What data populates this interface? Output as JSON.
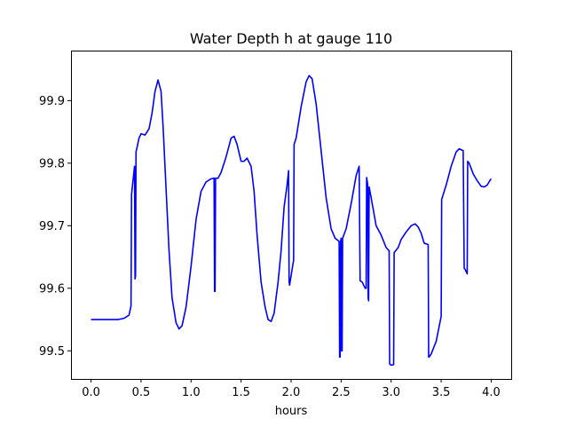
{
  "chart_data": {
    "type": "line",
    "title": "Water Depth h at gauge 110",
    "xlabel": "hours",
    "ylabel": "",
    "xlim": [
      -0.2,
      4.2
    ],
    "ylim": [
      99.455,
      99.98
    ],
    "grid": false,
    "x_ticks": [
      {
        "value": 0.0,
        "label": "0.0"
      },
      {
        "value": 0.5,
        "label": "0.5"
      },
      {
        "value": 1.0,
        "label": "1.0"
      },
      {
        "value": 1.5,
        "label": "1.5"
      },
      {
        "value": 2.0,
        "label": "2.0"
      },
      {
        "value": 2.5,
        "label": "2.5"
      },
      {
        "value": 3.0,
        "label": "3.0"
      },
      {
        "value": 3.5,
        "label": "3.5"
      },
      {
        "value": 4.0,
        "label": "4.0"
      }
    ],
    "y_ticks": [
      {
        "value": 99.5,
        "label": "99.5"
      },
      {
        "value": 99.6,
        "label": "99.6"
      },
      {
        "value": 99.7,
        "label": "99.7"
      },
      {
        "value": 99.8,
        "label": "99.8"
      },
      {
        "value": 99.9,
        "label": "99.9"
      }
    ],
    "series": [
      {
        "color": "#0000ff",
        "points": [
          [
            0.0,
            99.55
          ],
          [
            0.27,
            99.55
          ],
          [
            0.33,
            99.552
          ],
          [
            0.38,
            99.557
          ],
          [
            0.4,
            99.572
          ],
          [
            0.405,
            99.75
          ],
          [
            0.435,
            99.795
          ],
          [
            0.44,
            99.615
          ],
          [
            0.445,
            99.62
          ],
          [
            0.45,
            99.818
          ],
          [
            0.48,
            99.84
          ],
          [
            0.5,
            99.847
          ],
          [
            0.54,
            99.845
          ],
          [
            0.58,
            99.855
          ],
          [
            0.61,
            99.88
          ],
          [
            0.64,
            99.915
          ],
          [
            0.67,
            99.933
          ],
          [
            0.7,
            99.915
          ],
          [
            0.72,
            99.86
          ],
          [
            0.75,
            99.76
          ],
          [
            0.78,
            99.66
          ],
          [
            0.81,
            99.585
          ],
          [
            0.85,
            99.545
          ],
          [
            0.88,
            99.535
          ],
          [
            0.91,
            99.54
          ],
          [
            0.95,
            99.57
          ],
          [
            1.0,
            99.635
          ],
          [
            1.05,
            99.71
          ],
          [
            1.1,
            99.755
          ],
          [
            1.15,
            99.77
          ],
          [
            1.2,
            99.775
          ],
          [
            1.23,
            99.776
          ],
          [
            1.235,
            99.595
          ],
          [
            1.24,
            99.595
          ],
          [
            1.245,
            99.776
          ],
          [
            1.27,
            99.776
          ],
          [
            1.3,
            99.785
          ],
          [
            1.35,
            99.81
          ],
          [
            1.4,
            99.84
          ],
          [
            1.43,
            99.843
          ],
          [
            1.46,
            99.83
          ],
          [
            1.5,
            99.803
          ],
          [
            1.53,
            99.803
          ],
          [
            1.56,
            99.808
          ],
          [
            1.6,
            99.795
          ],
          [
            1.63,
            99.755
          ],
          [
            1.66,
            99.685
          ],
          [
            1.7,
            99.61
          ],
          [
            1.74,
            99.57
          ],
          [
            1.77,
            99.55
          ],
          [
            1.8,
            99.547
          ],
          [
            1.83,
            99.56
          ],
          [
            1.87,
            99.61
          ],
          [
            1.9,
            99.66
          ],
          [
            1.93,
            99.73
          ],
          [
            1.96,
            99.765
          ],
          [
            1.975,
            99.788
          ],
          [
            1.98,
            99.61
          ],
          [
            1.985,
            99.605
          ],
          [
            2.02,
            99.64
          ],
          [
            2.025,
            99.645
          ],
          [
            2.03,
            99.83
          ],
          [
            2.05,
            99.84
          ],
          [
            2.1,
            99.89
          ],
          [
            2.15,
            99.93
          ],
          [
            2.18,
            99.94
          ],
          [
            2.21,
            99.935
          ],
          [
            2.25,
            99.895
          ],
          [
            2.3,
            99.82
          ],
          [
            2.35,
            99.745
          ],
          [
            2.4,
            99.695
          ],
          [
            2.44,
            99.68
          ],
          [
            2.48,
            99.675
          ],
          [
            2.485,
            99.49
          ],
          [
            2.49,
            99.49
          ],
          [
            2.495,
            99.675
          ],
          [
            2.5,
            99.68
          ],
          [
            2.505,
            99.5
          ],
          [
            2.51,
            99.5
          ],
          [
            2.515,
            99.68
          ],
          [
            2.55,
            99.695
          ],
          [
            2.6,
            99.735
          ],
          [
            2.65,
            99.78
          ],
          [
            2.68,
            99.795
          ],
          [
            2.69,
            99.612
          ],
          [
            2.71,
            99.61
          ],
          [
            2.74,
            99.6
          ],
          [
            2.75,
            99.6
          ],
          [
            2.755,
            99.777
          ],
          [
            2.765,
            99.767
          ],
          [
            2.77,
            99.585
          ],
          [
            2.775,
            99.58
          ],
          [
            2.78,
            99.762
          ],
          [
            2.8,
            99.745
          ],
          [
            2.85,
            99.7
          ],
          [
            2.9,
            99.685
          ],
          [
            2.95,
            99.665
          ],
          [
            2.98,
            99.66
          ],
          [
            2.985,
            99.479
          ],
          [
            3.0,
            99.477
          ],
          [
            3.025,
            99.478
          ],
          [
            3.03,
            99.657
          ],
          [
            3.07,
            99.665
          ],
          [
            3.1,
            99.678
          ],
          [
            3.15,
            99.69
          ],
          [
            3.2,
            99.7
          ],
          [
            3.24,
            99.703
          ],
          [
            3.27,
            99.698
          ],
          [
            3.3,
            99.688
          ],
          [
            3.33,
            99.672
          ],
          [
            3.37,
            99.67
          ],
          [
            3.375,
            99.49
          ],
          [
            3.38,
            99.49
          ],
          [
            3.4,
            99.495
          ],
          [
            3.45,
            99.515
          ],
          [
            3.5,
            99.555
          ],
          [
            3.505,
            99.742
          ],
          [
            3.55,
            99.765
          ],
          [
            3.6,
            99.795
          ],
          [
            3.65,
            99.818
          ],
          [
            3.68,
            99.823
          ],
          [
            3.72,
            99.82
          ],
          [
            3.73,
            99.632
          ],
          [
            3.74,
            99.63
          ],
          [
            3.76,
            99.623
          ],
          [
            3.765,
            99.803
          ],
          [
            3.78,
            99.8
          ],
          [
            3.82,
            99.783
          ],
          [
            3.86,
            99.772
          ],
          [
            3.9,
            99.763
          ],
          [
            3.93,
            99.762
          ],
          [
            3.96,
            99.765
          ],
          [
            3.99,
            99.773
          ],
          [
            4.0,
            99.775
          ]
        ]
      }
    ]
  }
}
